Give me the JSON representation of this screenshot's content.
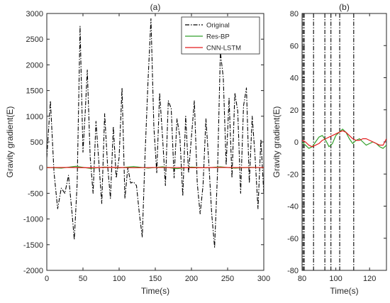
{
  "chart_data": [
    {
      "type": "line",
      "title": "(a)",
      "xlabel": "Time(s)",
      "ylabel": "Gravity gradient(E)",
      "xlim": [
        0,
        300
      ],
      "ylim": [
        -2000,
        3000
      ],
      "xticks": [
        0,
        50,
        100,
        150,
        200,
        250,
        300
      ],
      "yticks": [
        -2000,
        -1500,
        -1000,
        -500,
        0,
        500,
        1000,
        1500,
        2000,
        2500,
        3000
      ],
      "grid": false,
      "legend_position": "top-right",
      "series": [
        {
          "name": "Original",
          "color": "#000000",
          "style": "dashdot",
          "x": [
            0,
            5,
            10,
            15,
            20,
            25,
            30,
            35,
            38,
            42,
            46,
            50,
            53,
            56,
            60,
            64,
            68,
            72,
            76,
            80,
            84,
            88,
            92,
            96,
            100,
            104,
            108,
            112,
            116,
            120,
            124,
            128,
            132,
            136,
            140,
            144,
            148,
            152,
            156,
            160,
            164,
            168,
            172,
            176,
            180,
            184,
            188,
            192,
            196,
            200,
            204,
            208,
            212,
            216,
            220,
            224,
            228,
            232,
            236,
            240,
            244,
            248,
            252,
            256,
            260,
            264,
            268,
            272,
            276,
            280,
            284,
            288,
            292,
            296,
            300
          ],
          "y": [
            200,
            1300,
            -100,
            -800,
            -400,
            -500,
            -150,
            -900,
            -1400,
            -300,
            2750,
            300,
            1050,
            1900,
            200,
            -500,
            900,
            100,
            -700,
            1050,
            50,
            -600,
            800,
            -200,
            200,
            1550,
            -600,
            0,
            -300,
            -280,
            -350,
            -900,
            -1350,
            300,
            1700,
            2900,
            800,
            -100,
            1450,
            600,
            -350,
            1300,
            1150,
            -200,
            950,
            600,
            -550,
            1000,
            -100,
            600,
            1300,
            -300,
            -900,
            -350,
            950,
            100,
            -900,
            -1550,
            -100,
            2250,
            1750,
            50,
            1350,
            -200,
            1450,
            1100,
            -500,
            1200,
            1550,
            -300,
            1000,
            200,
            -800,
            550,
            -500
          ]
        },
        {
          "name": "Res-BP",
          "color": "#33a02c",
          "style": "solid",
          "x": [
            0,
            20,
            40,
            60,
            80,
            100,
            120,
            140,
            160,
            180,
            200,
            220,
            240,
            260,
            280,
            300
          ],
          "y": [
            5,
            -10,
            25,
            -15,
            10,
            -5,
            20,
            -10,
            15,
            -20,
            10,
            -5,
            15,
            -10,
            5,
            0
          ]
        },
        {
          "name": "CNN-LSTM",
          "color": "#e31a1c",
          "style": "solid",
          "x": [
            0,
            30,
            60,
            90,
            120,
            150,
            180,
            210,
            240,
            270,
            300
          ],
          "y": [
            0,
            3,
            -2,
            4,
            -3,
            2,
            0,
            -2,
            3,
            0,
            2
          ]
        }
      ]
    },
    {
      "type": "line",
      "title": "(b)",
      "xlabel": "Time(s)",
      "ylabel": "Gravity gradient(E)",
      "xlim": [
        80,
        130
      ],
      "ylim": [
        -80,
        80
      ],
      "xticks": [
        80,
        100,
        120
      ],
      "yticks": [
        -80,
        -60,
        -40,
        -20,
        0,
        20,
        40,
        60,
        80
      ],
      "grid": false,
      "vlines": [
        80.6,
        81.3,
        86.8,
        93.5,
        97.1,
        102.3,
        110.6
      ],
      "series": [
        {
          "name": "Original",
          "color": "#000000",
          "style": "dashdot",
          "x": [],
          "y": []
        },
        {
          "name": "Res-BP",
          "color": "#33a02c",
          "style": "solid",
          "x": [
            80,
            82,
            84,
            86,
            88,
            90,
            92,
            94,
            96,
            98,
            100,
            102,
            104,
            106,
            108,
            110,
            112,
            114,
            116,
            118,
            120,
            122,
            124,
            126,
            128,
            130
          ],
          "y": [
            0,
            -2,
            -4,
            -3,
            0,
            3,
            4,
            1,
            -3,
            -1,
            4,
            6,
            8,
            6,
            2,
            -1,
            1,
            2,
            0,
            -2,
            -1,
            0,
            -1,
            -3,
            -4,
            -2
          ]
        },
        {
          "name": "CNN-LSTM",
          "color": "#e31a1c",
          "style": "solid",
          "x": [
            80,
            82,
            84,
            86,
            88,
            90,
            92,
            94,
            96,
            98,
            100,
            102,
            104,
            106,
            108,
            110,
            112,
            114,
            116,
            118,
            120,
            122,
            124,
            126,
            128,
            130
          ],
          "y": [
            1,
            0,
            -2,
            -3,
            -2,
            -1,
            1,
            2,
            3,
            4,
            5,
            6,
            7,
            6,
            4,
            2,
            1,
            1,
            2,
            2,
            1,
            0,
            -1,
            -2,
            -2,
            2
          ]
        }
      ]
    }
  ]
}
